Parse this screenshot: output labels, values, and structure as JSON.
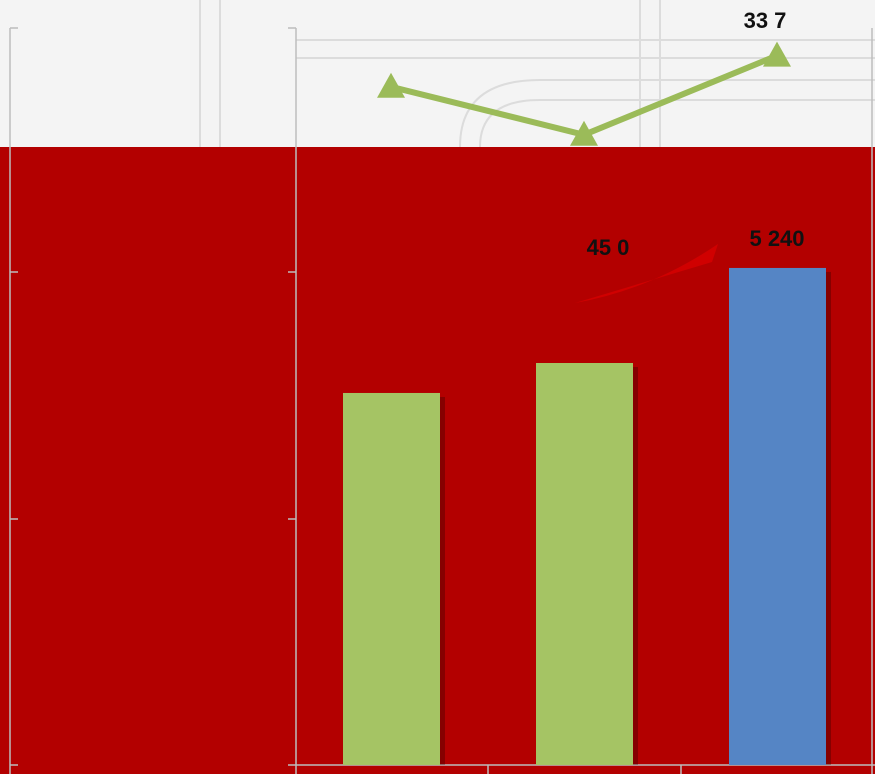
{
  "chart_data": {
    "type": "bar",
    "values": [
      3922,
      4238,
      5240
    ],
    "value_labels": [
      null,
      null,
      "5 240"
    ],
    "colors": [
      "#a5c464",
      "#a5c464",
      "#5585c5"
    ],
    "ylim": [
      0,
      7000
    ],
    "line": {
      "type": "line",
      "color": "#9bbb59",
      "values": [
        31.1,
        27.1,
        33.7
      ],
      "value_labels": [
        null,
        null,
        "33 7"
      ],
      "y2lim": [
        25,
        35
      ]
    },
    "annotation": "45 0"
  }
}
